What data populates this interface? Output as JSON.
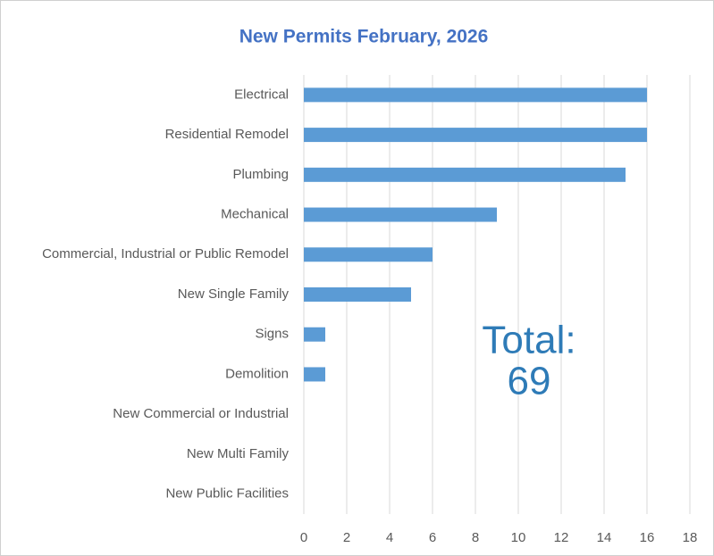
{
  "chart_data": {
    "type": "hbar",
    "title": "New Permits February, 2026",
    "categories": [
      "Electrical",
      "Residential Remodel",
      "Plumbing",
      "Mechanical",
      "Commercial, Industrial or Public Remodel",
      "New Single Family",
      "Signs",
      "Demolition",
      "New Commercial or Industrial",
      "New Multi Family",
      "New Public Facilities"
    ],
    "values": [
      16,
      16,
      15,
      9,
      6,
      5,
      1,
      1,
      0,
      0,
      0
    ],
    "color": "#5b9bd5",
    "xlim": [
      0,
      18
    ],
    "xticks": [
      0,
      2,
      4,
      6,
      8,
      10,
      12,
      14,
      16,
      18
    ],
    "grid": true,
    "annotations": [
      "Total:",
      "69"
    ]
  }
}
